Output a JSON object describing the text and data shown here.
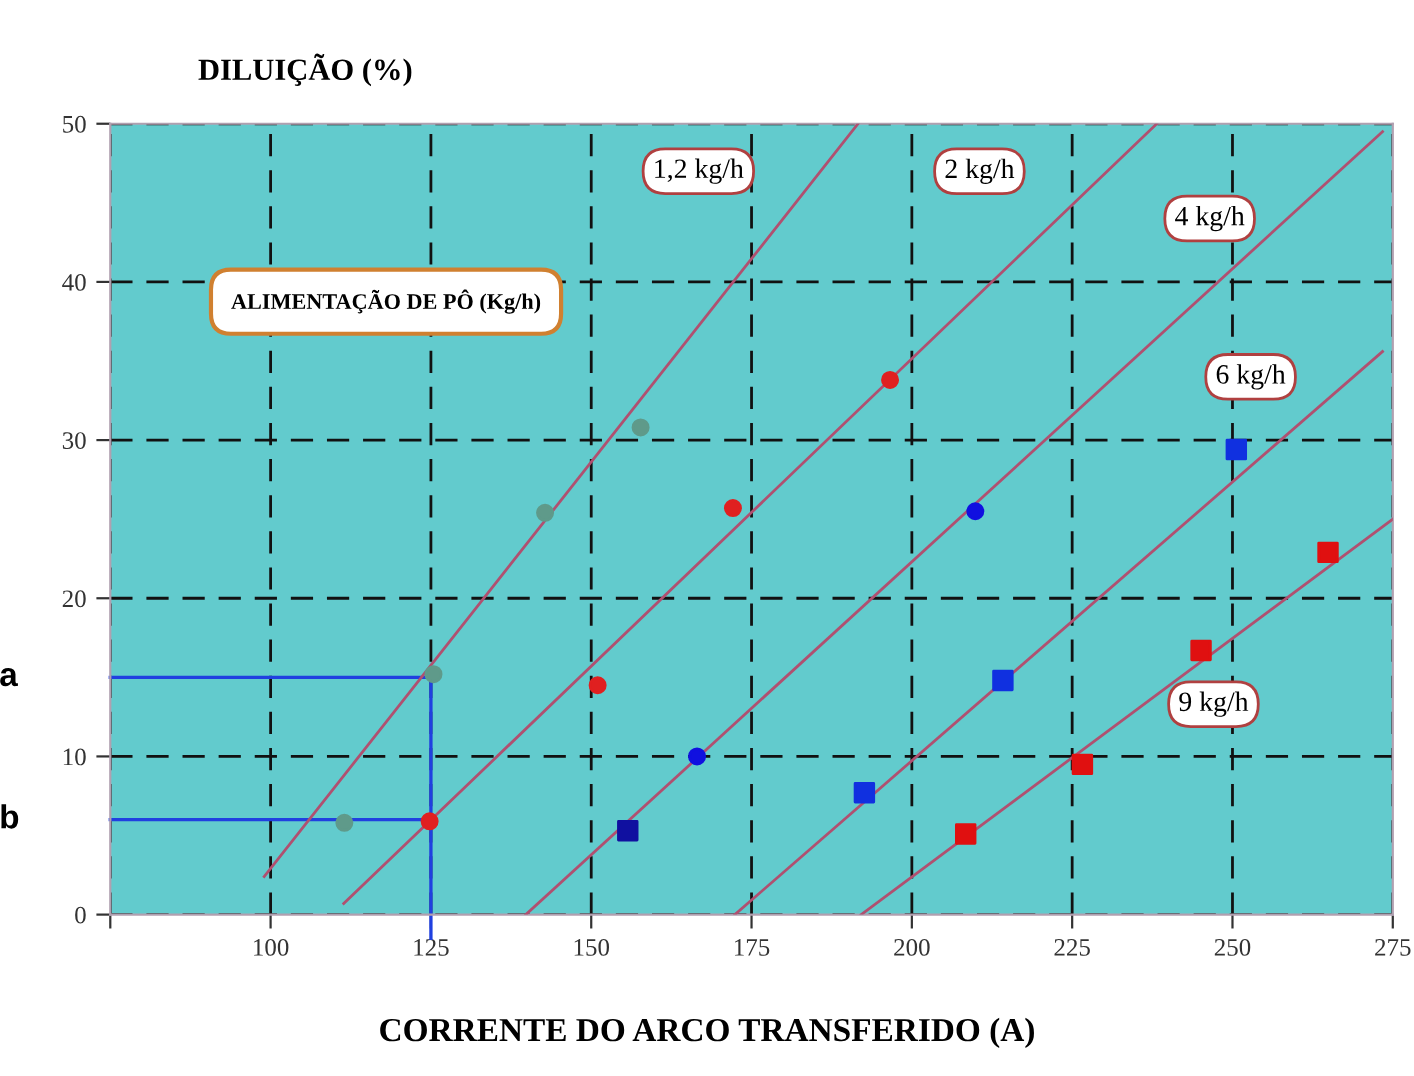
{
  "chart_data": {
    "type": "scatter",
    "ylabel": "DILUIÇÃO (%)",
    "xlabel": "CORRENTE DO ARCO TRANSFERIDO (A)",
    "xlim": [
      75,
      275
    ],
    "ylim": [
      0,
      50
    ],
    "xticks": [
      {
        "value": 75,
        "label": null
      },
      100,
      125,
      150,
      175,
      200,
      225,
      250,
      275
    ],
    "yticks": [
      0,
      10,
      20,
      30,
      40,
      50
    ],
    "grid": true,
    "series": [
      {
        "marker": "circle",
        "color": "#5f9a8a",
        "x": [
          111.5,
          125.4,
          142.8,
          157.7
        ],
        "values": [
          5.8,
          15.2,
          25.4,
          30.8
        ]
      },
      {
        "marker": "circle",
        "color": "#e02020",
        "x": [
          124.8,
          151.0,
          172.1,
          196.6
        ],
        "values": [
          5.9,
          14.5,
          25.7,
          33.8
        ]
      },
      {
        "marker": "circle",
        "color": "#1010e0",
        "x": [
          166.5,
          209.9
        ],
        "values": [
          10.0,
          25.5
        ]
      },
      {
        "marker": "square",
        "color": "#1010a0",
        "x": [
          155.7
        ],
        "values": [
          5.3
        ]
      },
      {
        "marker": "square",
        "color": "#1030e0",
        "x": [
          192.6,
          214.2,
          250.6
        ],
        "values": [
          7.7,
          14.8,
          29.4
        ]
      },
      {
        "marker": "square",
        "color": "#e01010",
        "x": [
          208.4,
          226.6,
          245.1,
          264.9
        ],
        "values": [
          5.1,
          9.5,
          16.7,
          22.9
        ]
      },
      {
        "type": "line",
        "name": "1,2 kg/h",
        "color": "#b05070",
        "x": [
          99,
          191.6
        ],
        "values": [
          2.4,
          50
        ]
      },
      {
        "type": "line",
        "name": "2 kg/h",
        "color": "#b05070",
        "x": [
          111.4,
          238.2
        ],
        "values": [
          0.7,
          50
        ]
      },
      {
        "type": "line",
        "name": "4 kg/h",
        "color": "#b05070",
        "x": [
          139.8,
          273.4
        ],
        "values": [
          0,
          49.5
        ]
      },
      {
        "type": "line",
        "name": "6 kg/h",
        "color": "#b05070",
        "x": [
          172.4,
          273.4
        ],
        "values": [
          0,
          35.6
        ]
      },
      {
        "type": "line",
        "name": "9 kg/h",
        "color": "#b05070",
        "x": [
          192.1,
          275
        ],
        "values": [
          0,
          25
        ]
      }
    ],
    "ref_lines": [
      {
        "axis": "y",
        "value": 15,
        "label": "a",
        "color": "#2040e0"
      },
      {
        "axis": "y",
        "value": 6,
        "label": "b",
        "color": "#2040e0"
      },
      {
        "axis": "x",
        "value": 125,
        "color": "#2040e0"
      }
    ],
    "annotations": [
      "ALIMENTAÇÃO DE PÔ (Kg/h)"
    ]
  }
}
